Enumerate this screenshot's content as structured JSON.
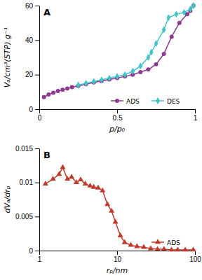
{
  "chart_data": [
    {
      "type": "line",
      "title": "A",
      "x_label": "p/p₀",
      "y_label": "Vₐ/cm³(STP) g⁻¹",
      "xlim": [
        0,
        1
      ],
      "xticks": [
        0,
        0.5,
        1
      ],
      "ylim": [
        0,
        60
      ],
      "yticks": [
        0,
        20,
        40,
        60
      ],
      "legend": "bottom-right",
      "series": [
        {
          "name": "ADS",
          "color": "#8e3a8e",
          "marker": "circle",
          "x": [
            0.03,
            0.06,
            0.09,
            0.12,
            0.15,
            0.18,
            0.21,
            0.25,
            0.3,
            0.35,
            0.4,
            0.45,
            0.5,
            0.55,
            0.6,
            0.65,
            0.7,
            0.75,
            0.8,
            0.85,
            0.9,
            0.95,
            0.97,
            0.99
          ],
          "values": [
            7,
            8.5,
            9.5,
            10.5,
            11.3,
            12,
            12.8,
            13.5,
            14.5,
            15.5,
            16.3,
            17.2,
            18,
            19,
            20,
            21.5,
            23,
            26,
            32,
            42,
            50,
            55,
            57,
            60
          ]
        },
        {
          "name": "DES",
          "color": "#40c4c8",
          "marker": "diamond",
          "x": [
            0.25,
            0.3,
            0.35,
            0.4,
            0.45,
            0.5,
            0.55,
            0.6,
            0.65,
            0.7,
            0.72,
            0.75,
            0.8,
            0.83,
            0.88,
            0.93,
            0.97,
            0.99
          ],
          "values": [
            14,
            15,
            16,
            17,
            18,
            19,
            20,
            22,
            25,
            30,
            33,
            38,
            46,
            53,
            55,
            56,
            58,
            60
          ]
        }
      ]
    },
    {
      "type": "line",
      "title": "B",
      "x_label": "rₚ/nm",
      "y_label": "dVₐ/drₚ",
      "log": "x",
      "xlim": [
        1,
        100
      ],
      "xticks": [
        1,
        10,
        100
      ],
      "ylim": [
        0,
        0.015
      ],
      "yticks": [
        0,
        0.005,
        0.01,
        0.015
      ],
      "legend": "bottom-right",
      "series": [
        {
          "name": "ADS",
          "color": "#c0392b",
          "marker": "triangle",
          "x": [
            1.2,
            1.5,
            1.8,
            2.0,
            2.3,
            2.6,
            3.0,
            3.4,
            3.9,
            4.5,
            5.0,
            5.7,
            6.5,
            7.5,
            8.5,
            9.5,
            11,
            12.5,
            15,
            18,
            22,
            27,
            33,
            40,
            50,
            60,
            75,
            95
          ],
          "values": [
            0.0098,
            0.0105,
            0.0112,
            0.0122,
            0.0105,
            0.0108,
            0.01,
            0.0104,
            0.0098,
            0.0095,
            0.0093,
            0.0092,
            0.0088,
            0.0068,
            0.0058,
            0.0042,
            0.0022,
            0.0012,
            0.0008,
            0.0006,
            0.0005,
            0.0003,
            0.0002,
            0.0002,
            0.0001,
            0.0001,
            0.0001,
            0.0001
          ]
        }
      ]
    }
  ]
}
